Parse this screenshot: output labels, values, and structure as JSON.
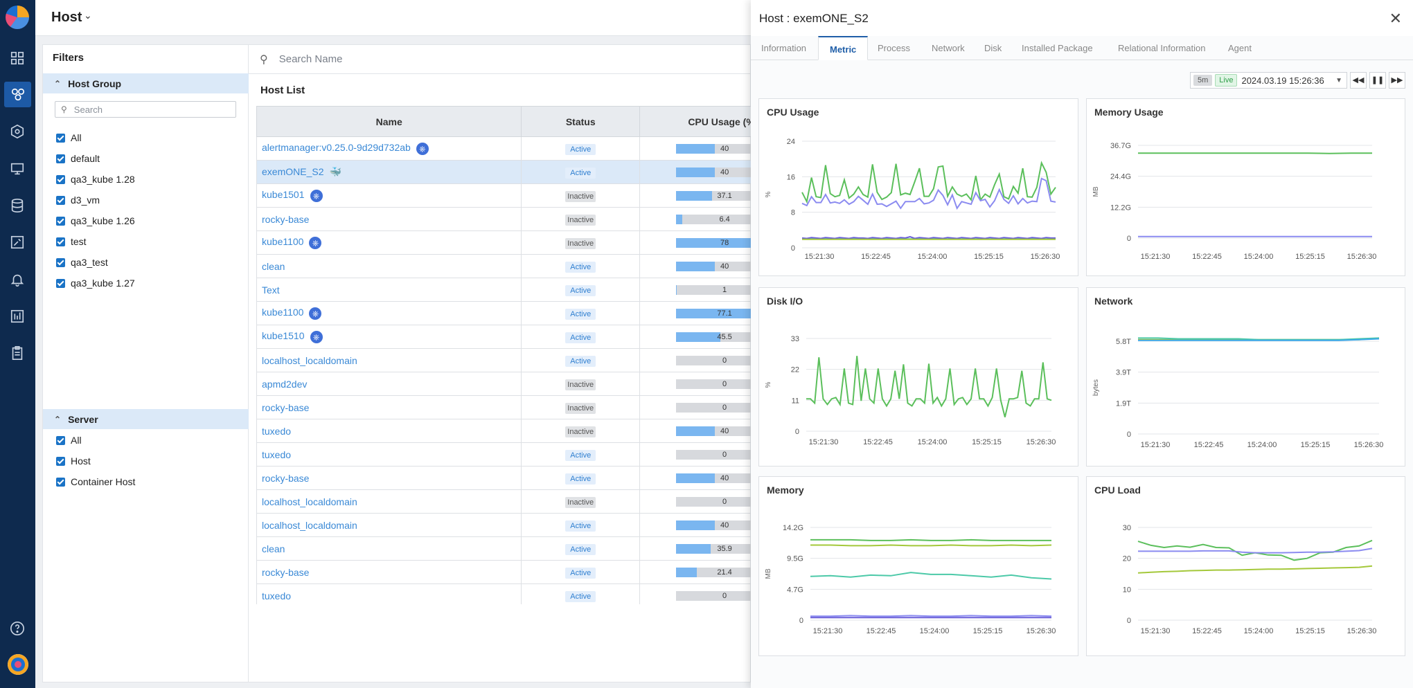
{
  "page": {
    "title": "Host"
  },
  "filters": {
    "title": "Filters",
    "host_group": {
      "title": "Host Group",
      "search_placeholder": "Search",
      "items": [
        "All",
        "default",
        "qa3_kube 1.28",
        "d3_vm",
        "qa3_kube 1.26",
        "test",
        "qa3_test",
        "qa3_kube 1.27"
      ]
    },
    "server": {
      "title": "Server",
      "items": [
        "All",
        "Host",
        "Container Host"
      ]
    }
  },
  "main": {
    "search_placeholder": "Search Name",
    "list_title": "Host List",
    "columns": [
      "Name",
      "Status",
      "CPU Usage (%"
    ],
    "rows": [
      {
        "name": "alertmanager:v0.25.0-9d29d732ab",
        "icon": "kubernetes-icon",
        "status": "Active",
        "cpu": 40,
        "cpu_label": "40"
      },
      {
        "name": "exemONE_S2",
        "icon": "docker-icon",
        "status": "Active",
        "cpu": 40,
        "cpu_label": "40",
        "selected": true
      },
      {
        "name": "kube1501",
        "icon": "kubernetes-icon",
        "status": "Inactive",
        "cpu": 37.1,
        "cpu_label": "37.1"
      },
      {
        "name": "rocky-base",
        "icon": "",
        "status": "Inactive",
        "cpu": 6.4,
        "cpu_label": "6.4"
      },
      {
        "name": "kube1100",
        "icon": "kubernetes-icon",
        "status": "Inactive",
        "cpu": 78,
        "cpu_label": "78"
      },
      {
        "name": "clean",
        "icon": "",
        "status": "Active",
        "cpu": 40,
        "cpu_label": "40"
      },
      {
        "name": "Text",
        "icon": "",
        "status": "Active",
        "cpu": 1,
        "cpu_label": "1"
      },
      {
        "name": "kube1100",
        "icon": "kubernetes-icon",
        "status": "Active",
        "cpu": 77.1,
        "cpu_label": "77.1"
      },
      {
        "name": "kube1510",
        "icon": "kubernetes-icon",
        "status": "Active",
        "cpu": 45.5,
        "cpu_label": "45.5"
      },
      {
        "name": "localhost_localdomain",
        "icon": "",
        "status": "Active",
        "cpu": 0,
        "cpu_label": "0"
      },
      {
        "name": "apmd2dev",
        "icon": "",
        "status": "Inactive",
        "cpu": 0,
        "cpu_label": "0"
      },
      {
        "name": "rocky-base",
        "icon": "",
        "status": "Inactive",
        "cpu": 0,
        "cpu_label": "0"
      },
      {
        "name": "tuxedo",
        "icon": "",
        "status": "Inactive",
        "cpu": 40,
        "cpu_label": "40"
      },
      {
        "name": "tuxedo",
        "icon": "",
        "status": "Active",
        "cpu": 0,
        "cpu_label": "0"
      },
      {
        "name": "rocky-base",
        "icon": "",
        "status": "Active",
        "cpu": 40,
        "cpu_label": "40"
      },
      {
        "name": "localhost_localdomain",
        "icon": "",
        "status": "Inactive",
        "cpu": 0,
        "cpu_label": "0"
      },
      {
        "name": "localhost_localdomain",
        "icon": "",
        "status": "Active",
        "cpu": 40,
        "cpu_label": "40"
      },
      {
        "name": "clean",
        "icon": "",
        "status": "Active",
        "cpu": 35.9,
        "cpu_label": "35.9"
      },
      {
        "name": "rocky-base",
        "icon": "",
        "status": "Active",
        "cpu": 21.4,
        "cpu_label": "21.4"
      },
      {
        "name": "tuxedo",
        "icon": "",
        "status": "Active",
        "cpu": 0,
        "cpu_label": "0"
      }
    ]
  },
  "detail": {
    "title": "Host : exemONE_S2",
    "tabs": [
      "Information",
      "Metric",
      "Process",
      "Network",
      "Disk",
      "Installed Package",
      "Relational Information",
      "Agent"
    ],
    "active_tab": "Metric",
    "range": "5m",
    "live": "Live",
    "datetime": "2024.03.19 15:26:36"
  },
  "colors": {
    "nav_bg": "#0e2a4e",
    "accent": "#1a73c6",
    "green": "#5bbf5b",
    "purple": "#8b8bf0",
    "teal": "#4cc9a8",
    "lime": "#a4c83a"
  },
  "chart_data": [
    {
      "type": "line",
      "title": "CPU Usage",
      "ylabel": "%",
      "yticks": [
        "24",
        "16",
        "8",
        "0"
      ],
      "ylim": [
        0,
        24
      ],
      "xticks": [
        "15:21:30",
        "15:22:45",
        "15:24:00",
        "15:25:15",
        "15:26:30"
      ],
      "series": [
        {
          "color": "#5bbf5b",
          "values": [
            12.5,
            10.4,
            15.8,
            11.5,
            11.3,
            18.6,
            12.2,
            11.5,
            11.8,
            15.3,
            11.2,
            12.1,
            13.7,
            12.0,
            11.4,
            18.8,
            12.5,
            10.9,
            11.4,
            12.4,
            18.9,
            11.9,
            12.3,
            12.0,
            14.9,
            17.9,
            11.6,
            11.6,
            13.3,
            18.2,
            18.4,
            11.6,
            13.7,
            12.1,
            11.6,
            12.1,
            10.8,
            16.2,
            10.8,
            12.1,
            11.4,
            14.2,
            16.6,
            11.5,
            11.0,
            13.8,
            12.3,
            17.9,
            11.5,
            11.4,
            13.6,
            19.1,
            17.0,
            12.1,
            13.6
          ]
        },
        {
          "color": "#8b8bf0",
          "values": [
            10.0,
            9.5,
            11.5,
            10.2,
            10.2,
            12.0,
            10.1,
            10.3,
            10.0,
            10.8,
            9.8,
            10.4,
            11.6,
            10.7,
            9.8,
            12.1,
            9.8,
            9.9,
            9.3,
            9.9,
            10.5,
            8.9,
            10.4,
            10.4,
            10.4,
            11.1,
            9.9,
            10.1,
            10.7,
            13.0,
            11.8,
            9.7,
            11.9,
            8.9,
            10.4,
            10.1,
            9.8,
            12.4,
            10.6,
            10.9,
            9.2,
            10.6,
            13.1,
            10.9,
            10.0,
            11.7,
            9.9,
            11.1,
            10.1,
            10.5,
            10.4,
            15.6,
            15.1,
            10.5,
            10.3
          ]
        },
        {
          "color": "#4cc9a8",
          "values": [
            2.0,
            2.0,
            2.1,
            2.0,
            2.0,
            2.1,
            2.0,
            2.0,
            2.1,
            2.0,
            2.0,
            2.1,
            2.0,
            2.0,
            2.0,
            2.1,
            2.0,
            2.0,
            2.1,
            2.0,
            2.0,
            2.1,
            2.0,
            2.0,
            2.0,
            2.1,
            2.0,
            2.0,
            2.1,
            2.0,
            2.0,
            2.0,
            2.1,
            2.0,
            2.0,
            2.1,
            2.0,
            2.0,
            2.0,
            2.1,
            2.0,
            2.0,
            2.1,
            2.0,
            2.0,
            2.0,
            2.1,
            2.0,
            2.0,
            2.1,
            2.0,
            2.0,
            2.0,
            2.1,
            2.0
          ]
        },
        {
          "color": "#6a5fd8",
          "values": [
            2.2,
            2.1,
            2.3,
            2.2,
            2.1,
            2.3,
            2.2,
            2.1,
            2.3,
            2.2,
            2.1,
            2.3,
            2.2,
            2.2,
            2.1,
            2.3,
            2.2,
            2.1,
            2.3,
            2.2,
            2.1,
            2.3,
            2.2,
            2.5,
            2.1,
            2.3,
            2.2,
            2.1,
            2.3,
            2.2,
            2.1,
            2.3,
            2.2,
            2.1,
            2.3,
            2.2,
            2.1,
            2.3,
            2.2,
            2.1,
            2.3,
            2.2,
            2.1,
            2.3,
            2.2,
            2.1,
            2.3,
            2.2,
            2.1,
            2.3,
            2.2,
            2.1,
            2.3,
            2.2,
            2.2
          ]
        },
        {
          "color": "#a4c83a",
          "values": [
            1.9,
            1.9,
            1.9,
            1.9,
            1.9,
            1.9,
            1.9,
            1.9,
            1.9,
            1.9,
            1.9,
            1.9,
            1.9,
            1.9,
            1.9,
            1.9,
            1.9,
            1.9,
            1.9,
            1.9,
            1.9,
            1.9,
            1.9,
            1.9,
            1.9,
            1.9,
            1.9,
            1.9,
            1.9,
            1.9,
            1.9,
            1.9,
            1.9,
            1.9,
            1.9,
            1.9,
            1.9,
            1.9,
            1.9,
            1.9,
            1.9,
            1.9,
            1.9,
            1.9,
            1.9,
            1.9,
            1.9,
            1.9,
            1.9,
            1.9,
            1.9,
            1.9,
            1.9,
            1.9,
            1.9
          ]
        }
      ]
    },
    {
      "type": "line",
      "title": "Memory Usage",
      "ylabel": "MB",
      "yticks": [
        "36.7G",
        "24.4G",
        "12.2G",
        "0"
      ],
      "ylim": [
        0,
        36.7
      ],
      "xticks": [
        "15:21:30",
        "15:22:45",
        "15:24:00",
        "15:25:15",
        "15:26:30"
      ],
      "series": [
        {
          "color": "#5bbf5b",
          "values": [
            33.6,
            33.6,
            33.6,
            33.6,
            33.6,
            33.6,
            33.6,
            33.6,
            33.6,
            33.5,
            33.6,
            33.6
          ]
        },
        {
          "color": "#8b8bf0",
          "values": [
            0.6,
            0.6,
            0.6,
            0.6,
            0.6,
            0.6,
            0.6,
            0.6,
            0.6,
            0.6,
            0.6,
            0.6
          ]
        }
      ]
    },
    {
      "type": "line",
      "title": "Disk I/O",
      "ylabel": "%",
      "yticks": [
        "33",
        "22",
        "11",
        "0"
      ],
      "ylim": [
        0,
        33
      ],
      "xticks": [
        "15:21:30",
        "15:22:45",
        "15:24:00",
        "15:25:15",
        "15:26:30"
      ],
      "series": [
        {
          "color": "#5bbf5b",
          "values": [
            11.5,
            11.5,
            10.0,
            26.3,
            11.5,
            9.5,
            11.5,
            12.0,
            9.5,
            22.3,
            10.0,
            9.5,
            26.8,
            10.8,
            22.3,
            11.5,
            10.0,
            22.3,
            11.5,
            9.0,
            11.5,
            21.5,
            11.5,
            23.8,
            10.0,
            9.0,
            11.5,
            11.5,
            10.0,
            24.0,
            10.0,
            12.0,
            9.0,
            11.5,
            22.3,
            9.5,
            11.5,
            12.0,
            9.5,
            11.5,
            22.3,
            11.5,
            11.5,
            9.0,
            12.0,
            22.3,
            11.0,
            5.0,
            11.5,
            11.5,
            12.0,
            21.5,
            10.0,
            9.0,
            11.5,
            11.5,
            24.5,
            11.5,
            11.0
          ]
        }
      ]
    },
    {
      "type": "line",
      "title": "Network",
      "ylabel": "bytes",
      "yticks": [
        "5.8T",
        "3.9T",
        "1.9T",
        "0"
      ],
      "ylim": [
        0,
        5.8
      ],
      "xticks": [
        "15:21:30",
        "15:22:45",
        "15:24:00",
        "15:25:15",
        "15:26:30"
      ],
      "series": [
        {
          "color": "#a4c83a",
          "values": [
            5.9,
            5.9,
            5.9,
            5.9,
            5.9,
            5.9,
            5.9,
            5.9,
            5.9,
            5.9,
            5.9,
            5.9,
            6.0
          ]
        },
        {
          "color": "#4cc9a8",
          "values": [
            6.0,
            6.0,
            5.95,
            5.95,
            5.95,
            5.95,
            5.9,
            5.9,
            5.9,
            5.9,
            5.9,
            5.95,
            6.0
          ]
        },
        {
          "color": "#3ba8e8",
          "values": [
            5.85,
            5.85,
            5.85,
            5.85,
            5.85,
            5.85,
            5.85,
            5.85,
            5.85,
            5.85,
            5.85,
            5.9,
            5.95
          ]
        }
      ]
    },
    {
      "type": "line",
      "title": "Memory",
      "ylabel": "MB",
      "yticks": [
        "14.2G",
        "9.5G",
        "4.7G",
        "0"
      ],
      "ylim": [
        0,
        14.2
      ],
      "xticks": [
        "15:21:30",
        "15:22:45",
        "15:24:00",
        "15:25:15",
        "15:26:30"
      ],
      "series": [
        {
          "color": "#5bbf5b",
          "values": [
            12.3,
            12.3,
            12.3,
            12.2,
            12.2,
            12.3,
            12.2,
            12.2,
            12.3,
            12.2,
            12.2,
            12.2,
            12.2
          ]
        },
        {
          "color": "#a4c83a",
          "values": [
            11.5,
            11.5,
            11.4,
            11.4,
            11.5,
            11.4,
            11.4,
            11.5,
            11.4,
            11.4,
            11.5,
            11.4,
            11.5
          ]
        },
        {
          "color": "#4cc9a8",
          "values": [
            6.7,
            6.8,
            6.6,
            6.9,
            6.8,
            7.3,
            7.0,
            7.0,
            6.8,
            6.6,
            6.9,
            6.5,
            6.3
          ]
        },
        {
          "color": "#8b8bf0",
          "values": [
            0.6,
            0.6,
            0.7,
            0.6,
            0.6,
            0.7,
            0.6,
            0.6,
            0.7,
            0.6,
            0.6,
            0.7,
            0.6
          ]
        },
        {
          "color": "#6a5fd8",
          "values": [
            0.4,
            0.4,
            0.4,
            0.4,
            0.4,
            0.4,
            0.4,
            0.4,
            0.4,
            0.4,
            0.4,
            0.4,
            0.4
          ]
        }
      ]
    },
    {
      "type": "line",
      "title": "CPU Load",
      "yticks": [
        "30",
        "20",
        "10",
        "0"
      ],
      "ylim": [
        0,
        30
      ],
      "xticks": [
        "15:21:30",
        "15:22:45",
        "15:24:00",
        "15:25:15",
        "15:26:30"
      ],
      "series": [
        {
          "color": "#5bbf5b",
          "values": [
            25.5,
            24.2,
            23.5,
            24.0,
            23.6,
            24.5,
            23.5,
            23.4,
            21.0,
            21.8,
            21.1,
            21.0,
            19.4,
            20.0,
            21.8,
            22.0,
            23.5,
            24.0,
            25.8
          ]
        },
        {
          "color": "#8b8bf0",
          "values": [
            22.3,
            22.3,
            22.3,
            22.3,
            22.3,
            22.4,
            22.4,
            22.4,
            22.0,
            21.8,
            21.8,
            21.8,
            21.9,
            22.0,
            22.0,
            22.1,
            22.3,
            22.5,
            23.2
          ]
        },
        {
          "color": "#a4c83a",
          "values": [
            15.3,
            15.5,
            15.7,
            15.8,
            16.0,
            16.1,
            16.2,
            16.2,
            16.3,
            16.4,
            16.5,
            16.5,
            16.6,
            16.7,
            16.8,
            16.9,
            17.0,
            17.1,
            17.5
          ]
        }
      ]
    }
  ]
}
